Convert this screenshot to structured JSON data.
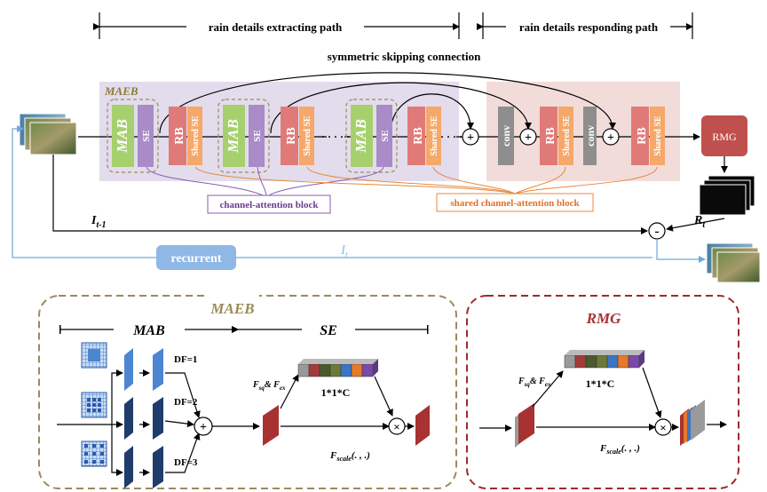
{
  "paths": {
    "extracting": "rain details extracting path",
    "responding": "rain details responding path",
    "skip": "symmetric skipping connection"
  },
  "labels": {
    "maeb_tag": "MAEB",
    "mab": "MAB",
    "se": "SE",
    "rb": "RB",
    "shared_se": "Shared SE",
    "conv": "conv",
    "plus": "+",
    "rmg": "RMG",
    "minus": "-",
    "channel_attention": "channel-attention block",
    "shared_channel_attention": "shared channel-attention block",
    "dots": "· · · · ·",
    "i_prev_main": "I",
    "i_prev_sub": "t-1",
    "r_main": "R",
    "r_sub": "t",
    "i_cur_main": "I",
    "i_cur_sub": "t",
    "recurrent": "recurrent"
  },
  "detail": {
    "maeb_title": "MAEB",
    "mab_header": "MAB",
    "se_header": "SE",
    "df1": "DF=1",
    "df2": "DF=2",
    "df3": "DF=3",
    "fsq_main": "F",
    "fsq_sub": "sq",
    "amp": "& F",
    "fex_sub": "ex",
    "c_dim": "1*1*C",
    "fscale_main": "F",
    "fscale_sub": "scale",
    "fscale_args": "(. , .)",
    "times": "×",
    "rmg_title": "RMG"
  },
  "colors": {
    "mab_green": "#a6d06e",
    "se_purple": "#a98bc7",
    "rb_red": "#e07a78",
    "shared_orange": "#f5a86a",
    "conv_grey": "#8e8e8e",
    "rmg_red": "#c0504d",
    "maeb_bg": "#e2dcec",
    "resp_bg": "#f2dcd9",
    "channel_purple": "#8a5bb0",
    "shared_orange_line": "#e88a3c",
    "recurrent_blue": "#6fa8dc",
    "maeb_dash": "#9c8a5a",
    "rmg_dash": "#9e2a2b"
  }
}
